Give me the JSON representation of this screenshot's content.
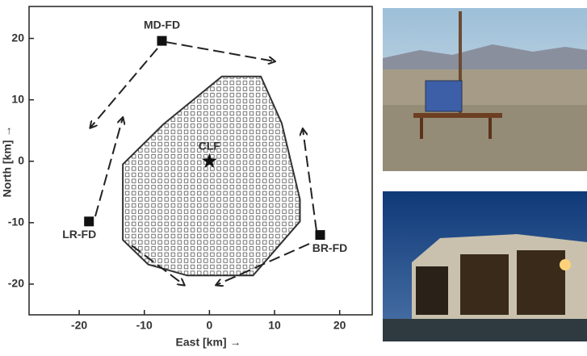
{
  "chart_data": {
    "type": "scatter",
    "xlabel": "East [km] →",
    "ylabel": "North [km] →",
    "xlim": [
      -27.7,
      25
    ],
    "ylim": [
      -25,
      25.2
    ],
    "xticks": [
      -20,
      -10,
      0,
      10,
      20
    ],
    "yticks": [
      -20,
      -10,
      0,
      10,
      20
    ],
    "points": {
      "labels": [
        "MD-FD",
        "LR-FD",
        "BR-FD",
        "CLF"
      ],
      "x": [
        -7.3,
        -18.5,
        17.0,
        0.0
      ],
      "y": [
        19.6,
        -9.8,
        -12.0,
        0.0
      ],
      "markers": [
        "square",
        "square",
        "square",
        "star"
      ],
      "color": "#111111"
    },
    "boundary": {
      "x": [
        1.9,
        7.9,
        11.1,
        13.9,
        13.9,
        6.7,
        -3.4,
        -9.4,
        -13.3,
        -13.3,
        -7.1
      ],
      "y": [
        13.8,
        13.8,
        6.2,
        -6.2,
        -9.8,
        -18.6,
        -18.6,
        -16.8,
        -12.8,
        -0.5,
        6.0
      ],
      "color": "#333333"
    }
  }
}
